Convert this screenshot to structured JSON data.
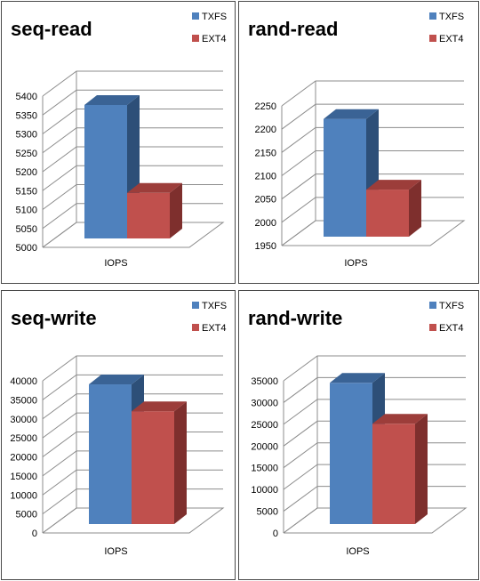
{
  "chart_data": [
    {
      "type": "bar",
      "title": "seq-read",
      "categories": [
        "IOPS"
      ],
      "series": [
        {
          "name": "TXFS",
          "values": [
            5375
          ]
        },
        {
          "name": "EXT4",
          "values": [
            5128
          ]
        }
      ],
      "ylim": [
        5000,
        5400
      ],
      "yticks": [
        5000,
        5050,
        5100,
        5150,
        5200,
        5250,
        5300,
        5350,
        5400
      ],
      "grid": true,
      "legend": "top-right",
      "style": "3d-column"
    },
    {
      "type": "bar",
      "title": "rand-read",
      "categories": [
        "IOPS"
      ],
      "series": [
        {
          "name": "TXFS",
          "values": [
            2220
          ]
        },
        {
          "name": "EXT4",
          "values": [
            2058
          ]
        }
      ],
      "ylim": [
        1950,
        2250
      ],
      "yticks": [
        1950,
        2000,
        2050,
        2100,
        2150,
        2200,
        2250
      ],
      "grid": true,
      "legend": "top-right",
      "style": "3d-column"
    },
    {
      "type": "bar",
      "title": "seq-write",
      "categories": [
        "IOPS"
      ],
      "series": [
        {
          "name": "TXFS",
          "values": [
            39000
          ]
        },
        {
          "name": "EXT4",
          "values": [
            31500
          ]
        }
      ],
      "ylim": [
        0,
        40000
      ],
      "yticks": [
        0,
        5000,
        10000,
        15000,
        20000,
        25000,
        30000,
        35000,
        40000
      ],
      "grid": true,
      "legend": "top-right",
      "style": "3d-column"
    },
    {
      "type": "bar",
      "title": "rand-write",
      "categories": [
        "IOPS"
      ],
      "series": [
        {
          "name": "TXFS",
          "values": [
            34500
          ]
        },
        {
          "name": "EXT4",
          "values": [
            24500
          ]
        }
      ],
      "ylim": [
        0,
        35000
      ],
      "yticks": [
        0,
        5000,
        10000,
        15000,
        20000,
        25000,
        30000,
        35000
      ],
      "grid": true,
      "legend": "top-right",
      "style": "3d-column"
    }
  ],
  "colors": {
    "TXFS": {
      "front": "#4f81bd",
      "side": "#2d4f78",
      "top": "#3a6395"
    },
    "EXT4": {
      "front": "#c0504d",
      "side": "#7e2f2d",
      "top": "#9c3d3a"
    },
    "grid": "#8c8c8c",
    "text": "#000000"
  }
}
